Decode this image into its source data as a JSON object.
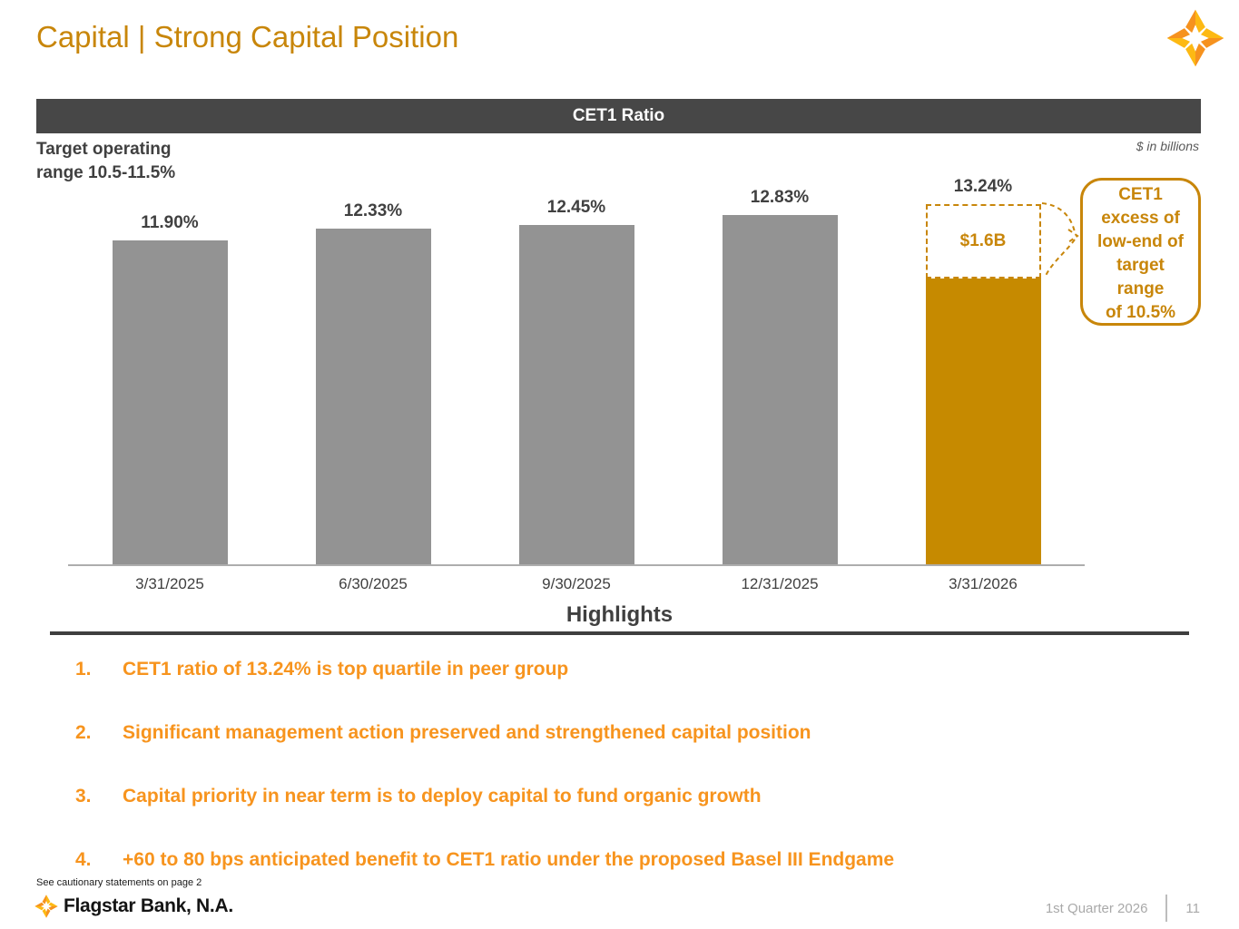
{
  "header": {
    "title": "Capital | Strong Capital Position"
  },
  "chart_data": {
    "type": "bar",
    "title": "CET1 Ratio",
    "categories": [
      "3/31/2025",
      "6/30/2025",
      "9/30/2025",
      "12/31/2025",
      "3/31/2026"
    ],
    "values": [
      11.9,
      12.33,
      12.45,
      12.83,
      13.24
    ],
    "labels": [
      "11.90%",
      "12.33%",
      "12.45%",
      "12.83%",
      "13.24%"
    ],
    "ylim": [
      0,
      14
    ],
    "grid": false,
    "legend": false,
    "bar_color_default": "#939393",
    "bar_color_highlight": "#C68A00",
    "annotations": {
      "target_range_note": "Target operating\nrange 10.5-11.5%",
      "units_note": "$ in billions",
      "callout": "CET1\nexcess of\nlow-end of\ntarget\nrange\nof 10.5%"
    },
    "highlight": {
      "category": "3/31/2026",
      "solid_value": 10.5,
      "excess_value": 2.74,
      "excess_label": "$1.6B"
    }
  },
  "highlights": {
    "title": "Highlights",
    "items": [
      {
        "num": "1.",
        "text": "CET1 ratio of 13.24% is top quartile in peer group"
      },
      {
        "num": "2.",
        "text": "Significant management action preserved and strengthened capital position"
      },
      {
        "num": "3.",
        "text": "Capital priority in near term is to deploy capital to fund organic growth"
      },
      {
        "num": "4.",
        "text": "+60 to 80 bps anticipated benefit to CET1 ratio under the proposed Basel III Endgame"
      }
    ]
  },
  "footer": {
    "cautionary": "See cautionary statements on page 2",
    "brand": "Flagstar Bank, N.A.",
    "period": "1st Quarter 2026",
    "page": "11"
  },
  "colors": {
    "title_gold": "#C8860A",
    "banner_gray": "#474747",
    "bar_gray": "#939393",
    "bar_gold": "#C68A00",
    "highlight_orange": "#F7941E",
    "text_dark": "#404040",
    "footer_gray": "#A9A9A9"
  }
}
